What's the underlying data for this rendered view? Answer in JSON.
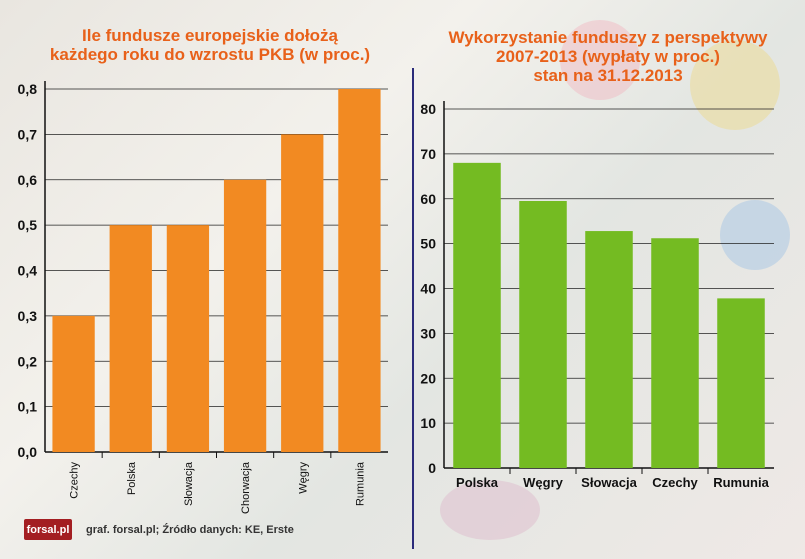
{
  "branding": {
    "logo_text": "forsal.pl"
  },
  "footer_text": "graf. forsal.pl; Źródło danych: KE, Erste",
  "colors": {
    "left_bar": "#f28a22",
    "right_bar": "#74bb22",
    "title": "#e8611a",
    "divider": "#2b2b7a"
  },
  "chart_data": [
    {
      "type": "bar",
      "title_lines": [
        "Ile fundusze europejskie dołożą",
        "każdego roku do wzrostu PKB (w proc.)"
      ],
      "categories": [
        "Czechy",
        "Polska",
        "Słowacja",
        "Chorwacja",
        "Węgry",
        "Rumunia"
      ],
      "values": [
        0.3,
        0.5,
        0.5,
        0.6,
        0.7,
        0.8
      ],
      "ylim": [
        0,
        0.8
      ],
      "yticks": [
        "0,0",
        "0,1",
        "0,2",
        "0,3",
        "0,4",
        "0,5",
        "0,6",
        "0,7",
        "0,8"
      ],
      "xlabel_orientation": "vertical",
      "grid": true
    },
    {
      "type": "bar",
      "title_lines": [
        "Wykorzystanie funduszy z perspektywy",
        "2007-2013 (wypłaty w proc.)",
        "stan na 31.12.2013"
      ],
      "categories": [
        "Polska",
        "Węgry",
        "Słowacja",
        "Czechy",
        "Rumunia"
      ],
      "values": [
        68,
        59.5,
        52.8,
        51.2,
        37.8
      ],
      "ylim": [
        0,
        80
      ],
      "yticks": [
        "0",
        "10",
        "20",
        "30",
        "40",
        "50",
        "60",
        "70",
        "80"
      ],
      "xlabel_orientation": "horizontal",
      "grid": true
    }
  ]
}
